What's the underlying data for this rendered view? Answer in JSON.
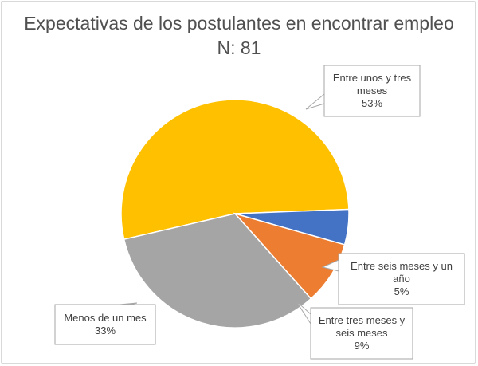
{
  "chart_data": {
    "type": "pie",
    "title": "Expectativas de los postulantes en encontrar empleo",
    "subtitle": "N: 81",
    "slices": [
      {
        "label": "Entre unos y tres meses",
        "value": 53,
        "display": "53%",
        "color": "#FFC000"
      },
      {
        "label": "Entre seis meses y un año",
        "value": 5,
        "display": "5%",
        "color": "#4472C4"
      },
      {
        "label": "Entre tres meses y seis meses",
        "value": 9,
        "display": "9%",
        "color": "#ED7D31"
      },
      {
        "label": "Menos de un mes",
        "value": 33,
        "display": "33%",
        "color": "#A5A5A5"
      }
    ],
    "callout_lines": [
      [
        "Entre unos y tres",
        "meses",
        "53%"
      ],
      [
        "Entre seis meses y un",
        "año",
        "5%"
      ],
      [
        "Entre tres meses y",
        "seis meses",
        "9%"
      ],
      [
        "Menos de un mes",
        "33%"
      ]
    ]
  }
}
